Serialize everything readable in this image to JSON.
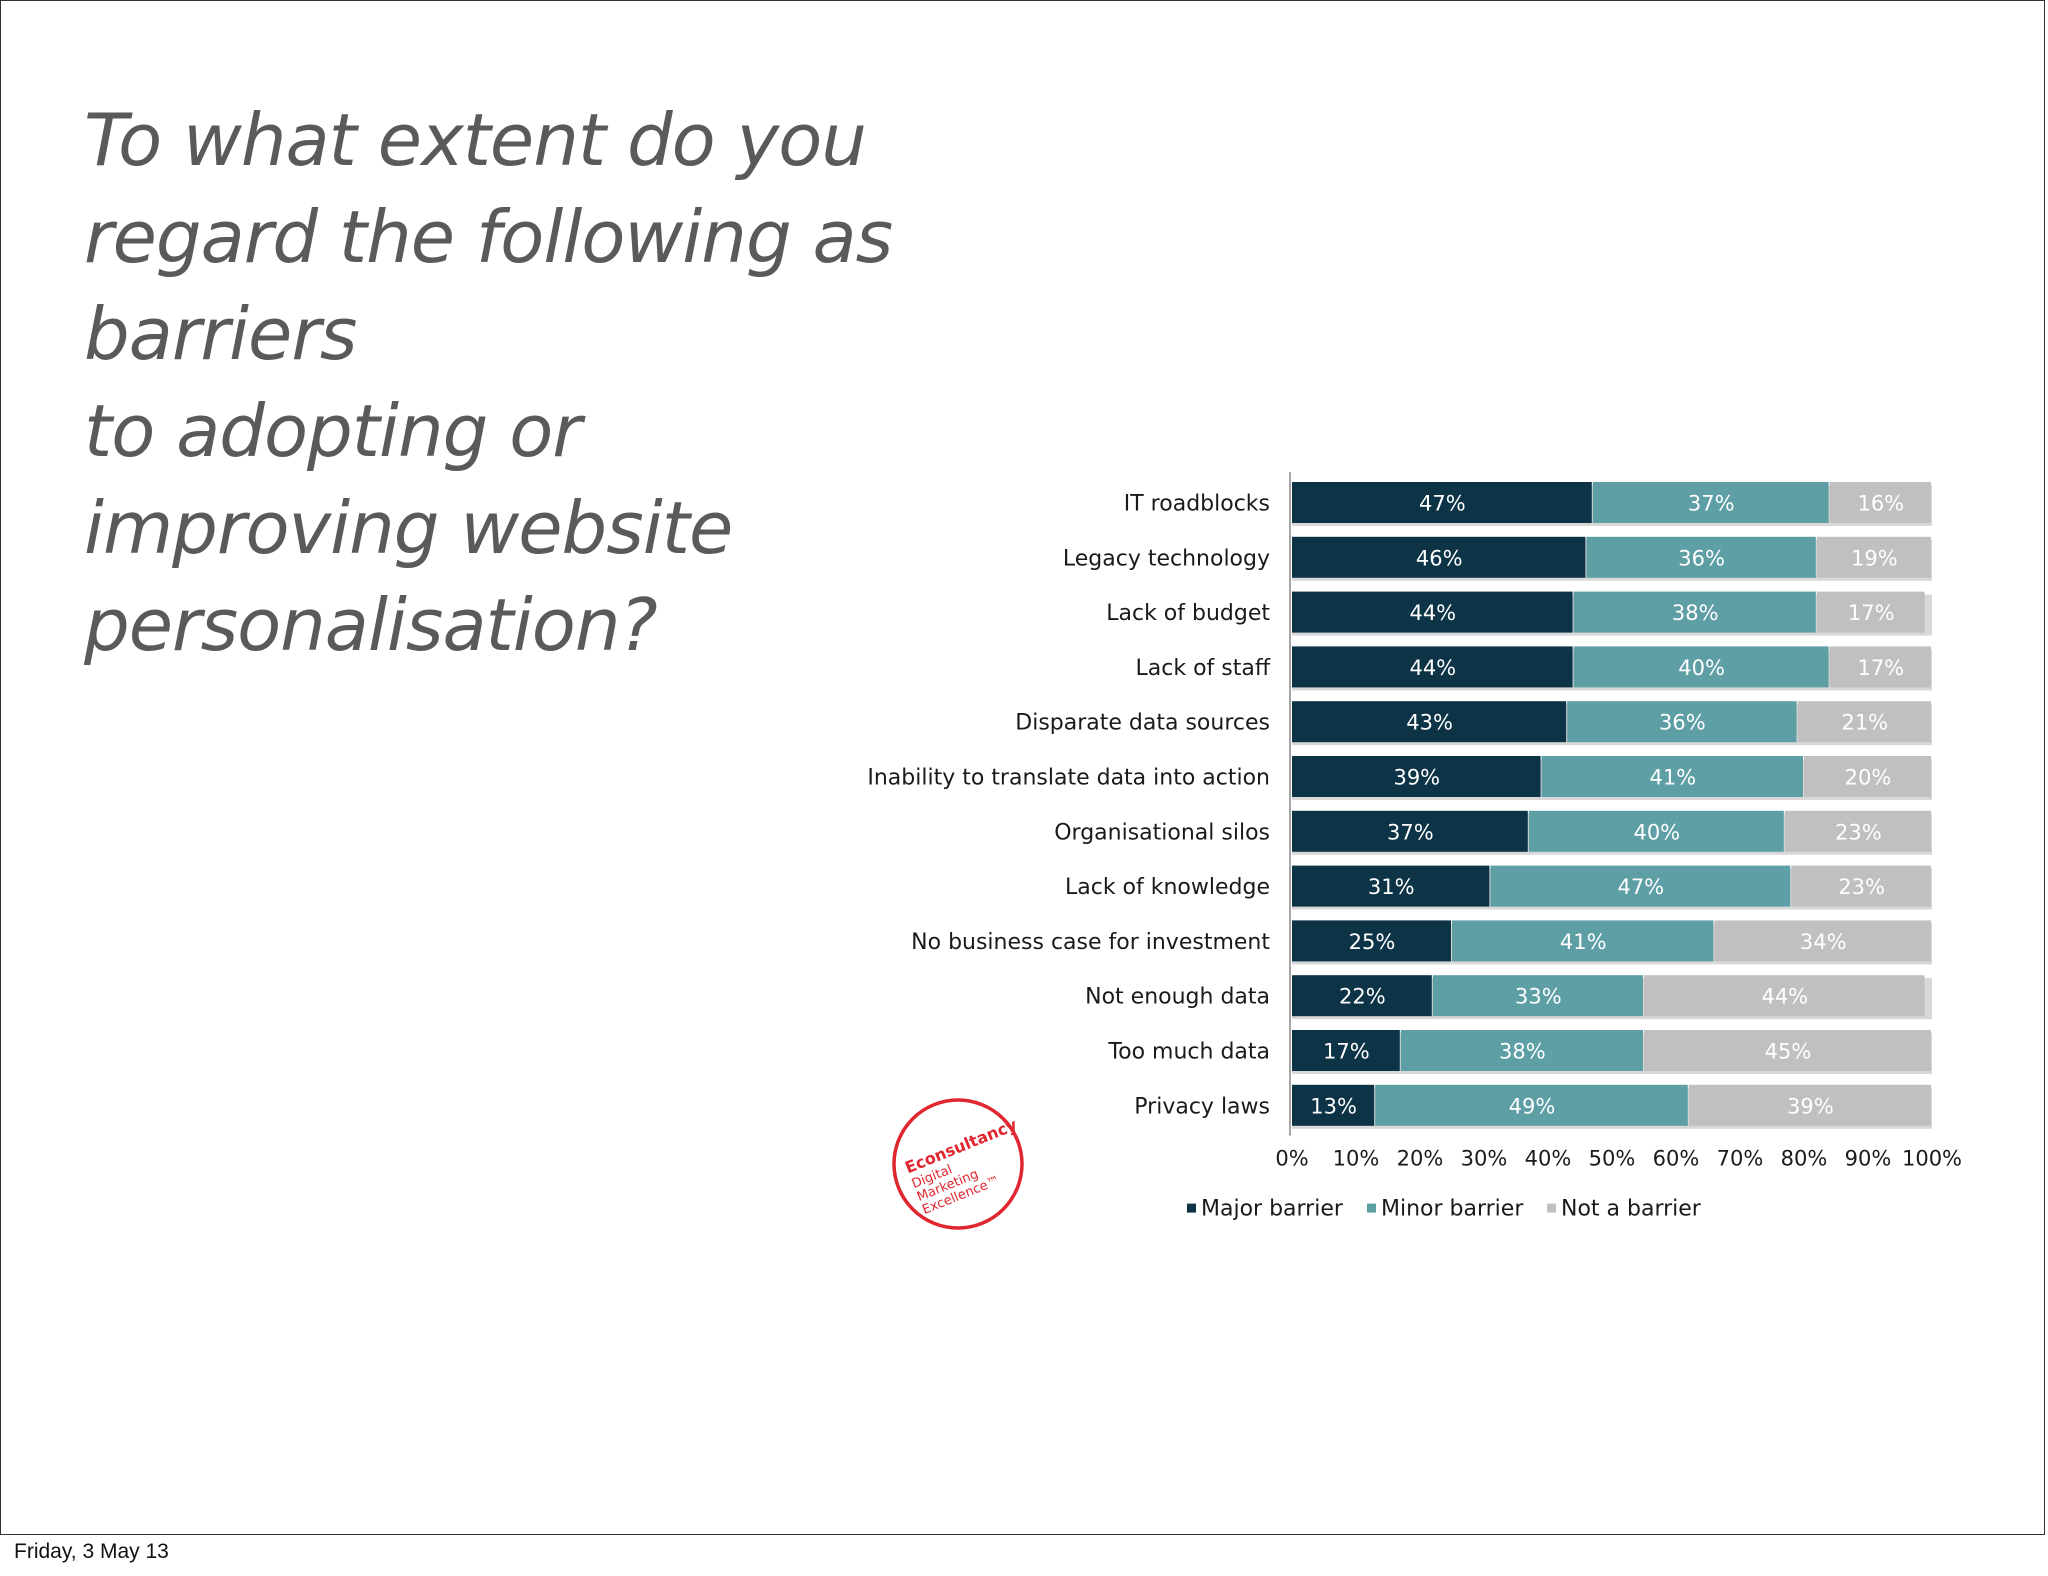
{
  "slide": {
    "title_lines": [
      "To what extent do you",
      "regard the following as",
      "barriers",
      "to adopting or",
      "improving website",
      "personalisation?"
    ],
    "footer_date": "Friday, 3 May 13"
  },
  "logo": {
    "lines": [
      "Econsultancy",
      "Digital",
      "Marketing",
      "Excellence™"
    ],
    "color": "#e0262f"
  },
  "chart_data": {
    "type": "bar",
    "orientation": "horizontal",
    "stacked": true,
    "categories": [
      "IT roadblocks",
      "Legacy technology",
      "Lack of budget",
      "Lack of staff",
      "Disparate data sources",
      "Inability to translate data into action",
      "Organisational silos",
      "Lack of knowledge",
      "No business case for investment",
      "Not enough data",
      "Too much data",
      "Privacy laws"
    ],
    "series": [
      {
        "name": "Major barrier",
        "color": "#0d3347",
        "values": [
          47,
          46,
          44,
          44,
          43,
          39,
          37,
          31,
          25,
          22,
          17,
          13
        ]
      },
      {
        "name": "Minor barrier",
        "color": "#5e9ea5",
        "values": [
          37,
          36,
          38,
          40,
          36,
          41,
          40,
          47,
          41,
          33,
          38,
          49
        ]
      },
      {
        "name": "Not a barrier",
        "color": "#c0c0c0",
        "values": [
          16,
          19,
          17,
          17,
          21,
          20,
          23,
          23,
          34,
          44,
          45,
          39
        ]
      }
    ],
    "value_labels": [
      [
        "47%",
        "46%",
        "44%",
        "44%",
        "43%",
        "39%",
        "37%",
        "31%",
        "25%",
        "22%",
        "17%",
        "13%"
      ],
      [
        "37%",
        "36%",
        "38%",
        "40%",
        "36%",
        "41%",
        "40%",
        "47%",
        "41%",
        "33%",
        "38%",
        "49%"
      ],
      [
        "16%",
        "19%",
        "17%",
        "17%",
        "21%",
        "20%",
        "23%",
        "23%",
        "34%",
        "44%",
        "45%",
        "39%"
      ]
    ],
    "xticks": [
      "0%",
      "10%",
      "20%",
      "30%",
      "40%",
      "50%",
      "60%",
      "70%",
      "80%",
      "90%",
      "100%"
    ],
    "xlim": [
      0,
      100
    ],
    "legend_position": "bottom",
    "grid": false
  }
}
